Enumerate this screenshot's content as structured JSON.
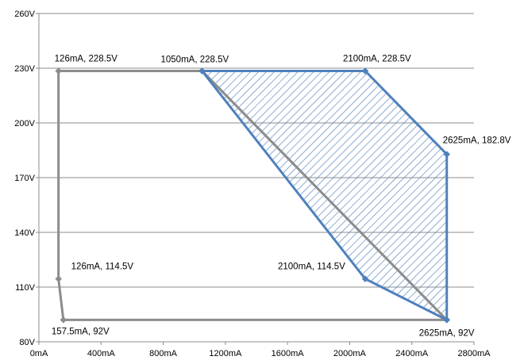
{
  "chart_data": {
    "type": "line",
    "title": "",
    "xlabel": "",
    "ylabel": "",
    "x_unit": "mA",
    "y_unit": "V",
    "xlim": [
      0,
      2800
    ],
    "ylim": [
      80,
      260
    ],
    "x_ticks": [
      0,
      400,
      800,
      1200,
      1600,
      2000,
      2400,
      2800
    ],
    "x_tick_labels": [
      "0mA",
      "400mA",
      "800mA",
      "1200mA",
      "1600mA",
      "2000mA",
      "2400mA",
      "2800mA"
    ],
    "y_ticks": [
      80,
      110,
      140,
      170,
      200,
      230,
      260
    ],
    "y_tick_labels": [
      "80V",
      "110V",
      "140V",
      "170V",
      "200V",
      "230V",
      "260V"
    ],
    "grid": "horizontal",
    "colors": {
      "outer_series": "#8c8c8c",
      "inner_series": "#4f81bd",
      "hatch": "#4f81bd",
      "grid": "#8c8c8c"
    },
    "series": [
      {
        "style": "gray-outline",
        "points": [
          {
            "x": 126,
            "y": 228.5
          },
          {
            "x": 1050,
            "y": 228.5
          },
          {
            "x": 2625,
            "y": 92
          },
          {
            "x": 157.5,
            "y": 92
          },
          {
            "x": 126,
            "y": 114.5
          },
          {
            "x": 126,
            "y": 228.5
          }
        ]
      },
      {
        "style": "blue-hatched-region",
        "points": [
          {
            "x": 1050,
            "y": 228.5
          },
          {
            "x": 2100,
            "y": 228.5
          },
          {
            "x": 2625,
            "y": 182.8
          },
          {
            "x": 2625,
            "y": 92
          },
          {
            "x": 2100,
            "y": 114.5
          },
          {
            "x": 1050,
            "y": 228.5
          }
        ]
      }
    ],
    "annotations": [
      {
        "text": "126mA, 228.5V",
        "x": 126,
        "y": 228.5,
        "pos": "above-right"
      },
      {
        "text": "1050mA, 228.5V",
        "x": 1050,
        "y": 228.5,
        "pos": "above-left"
      },
      {
        "text": "2100mA, 228.5V",
        "x": 2100,
        "y": 228.5,
        "pos": "above"
      },
      {
        "text": "2625mA, 182.8V",
        "x": 2625,
        "y": 182.8,
        "pos": "above-right"
      },
      {
        "text": "126mA, 114.5V",
        "x": 126,
        "y": 114.5,
        "pos": "right"
      },
      {
        "text": "2100mA, 114.5V",
        "x": 2100,
        "y": 114.5,
        "pos": "above-left"
      },
      {
        "text": "157.5mA, 92V",
        "x": 157.5,
        "y": 92,
        "pos": "below"
      },
      {
        "text": "2625mA, 92V",
        "x": 2625,
        "y": 92,
        "pos": "below"
      }
    ]
  }
}
